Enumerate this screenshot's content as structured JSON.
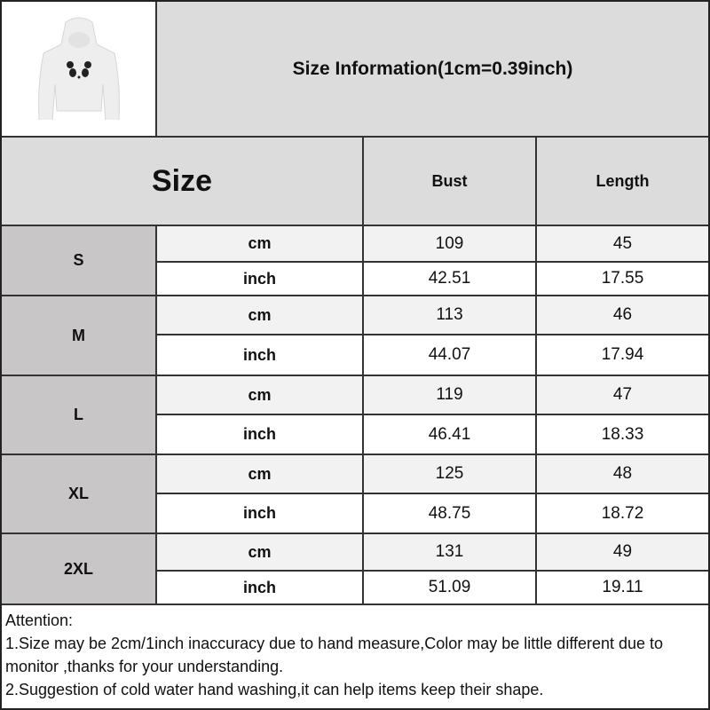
{
  "title": "Size Information(1cm=0.39inch)",
  "header": {
    "size": "Size",
    "bust": "Bust",
    "length": "Length"
  },
  "rows": [
    {
      "size": "S",
      "cm": {
        "unit": "cm",
        "bust": "109",
        "length": "45"
      },
      "inch": {
        "unit": "inch",
        "bust": "42.51",
        "length": "17.55"
      }
    },
    {
      "size": "M",
      "cm": {
        "unit": "cm",
        "bust": "113",
        "length": "46"
      },
      "inch": {
        "unit": "inch",
        "bust": "44.07",
        "length": "17.94"
      }
    },
    {
      "size": "L",
      "cm": {
        "unit": "cm",
        "bust": "119",
        "length": "47"
      },
      "inch": {
        "unit": "inch",
        "bust": "46.41",
        "length": "18.33"
      }
    },
    {
      "size": "XL",
      "cm": {
        "unit": "cm",
        "bust": "125",
        "length": "48"
      },
      "inch": {
        "unit": "inch",
        "bust": "48.75",
        "length": "18.72"
      }
    },
    {
      "size": "2XL",
      "cm": {
        "unit": "cm",
        "bust": "131",
        "length": "49"
      },
      "inch": {
        "unit": "inch",
        "bust": "51.09",
        "length": "19.11"
      }
    }
  ],
  "notes": [
    "Attention:",
    "1.Size may be 2cm/1inch inaccuracy due to hand measure,Color may be little different due to monitor ,thanks for your understanding.",
    "2.Suggestion of cold water hand washing,it can help items keep their shape."
  ]
}
